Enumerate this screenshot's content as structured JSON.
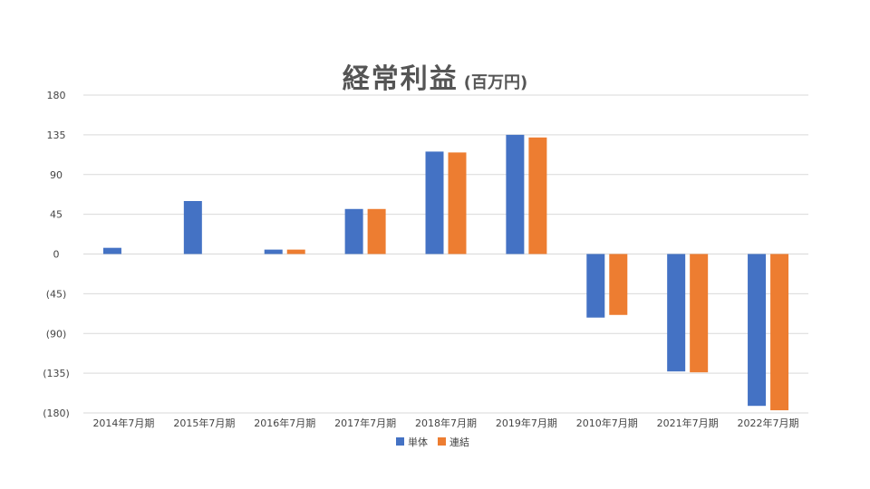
{
  "chart_data": {
    "type": "bar",
    "title": "経常利益",
    "unit_label": "(百万円)",
    "categories": [
      "2014年7月期",
      "2015年7月期",
      "2016年7月期",
      "2017年7月期",
      "2018年7月期",
      "2019年7月期",
      "2010年7月期",
      "2021年7月期",
      "2022年7月期"
    ],
    "series": [
      {
        "name": "単体",
        "color": "#4472C4",
        "values": [
          7,
          60,
          5,
          51,
          116,
          135,
          -72,
          -133,
          -172
        ]
      },
      {
        "name": "連結",
        "color": "#ED7D31",
        "values": [
          null,
          null,
          5,
          51,
          115,
          132,
          -69,
          -134,
          -177
        ]
      }
    ],
    "ylim": [
      -180,
      180
    ],
    "y_ticks": [
      180,
      135,
      90,
      45,
      0,
      -45,
      -90,
      -135,
      -180
    ],
    "y_tick_labels": [
      "180",
      "135",
      "90",
      "45",
      "0",
      "(45)",
      "(90)",
      "(135)",
      "(180)"
    ],
    "grid": true,
    "legend_position": "bottom"
  }
}
